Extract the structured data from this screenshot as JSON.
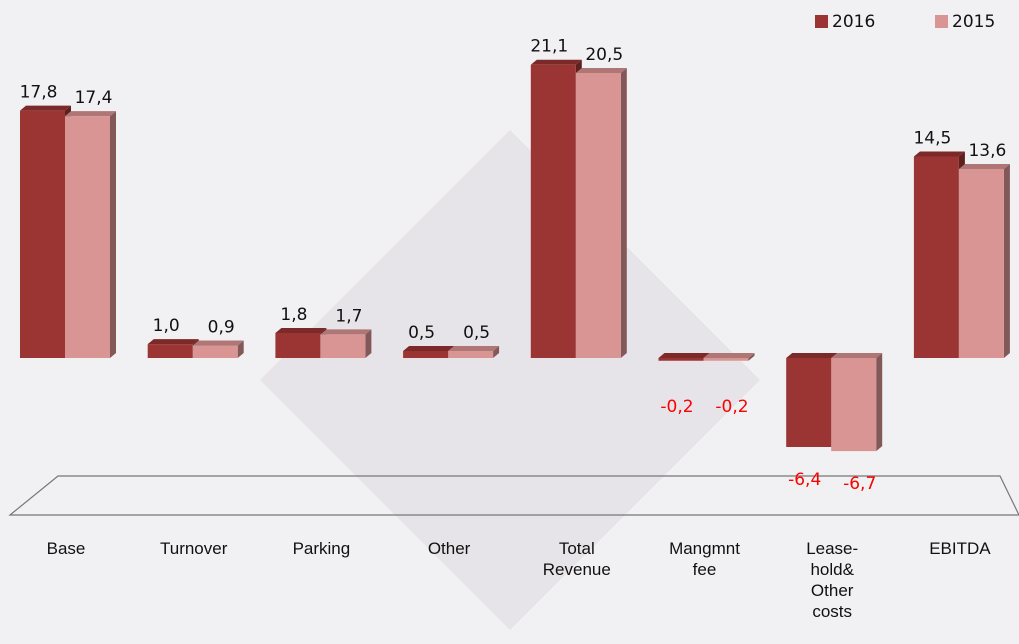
{
  "chart_data": {
    "type": "bar3d",
    "categories": [
      "Base",
      "Turnover",
      "Parking",
      "Other",
      "Total\nRevenue",
      "Mangmnt\nfee",
      "Lease-\nhold&\nOther\ncosts",
      "EBITDA"
    ],
    "series": [
      {
        "name": "2016",
        "color": "#9b3533",
        "values": [
          17.8,
          1.0,
          1.8,
          0.5,
          21.1,
          -0.2,
          -6.4,
          14.5
        ],
        "value_labels": [
          "17,8",
          "1,0",
          "1,8",
          "0,5",
          "21,1",
          "-0,2",
          "-6,4",
          "14,5"
        ]
      },
      {
        "name": "2015",
        "color": "#d99593",
        "values": [
          17.4,
          0.9,
          1.7,
          0.5,
          20.5,
          -0.2,
          -6.7,
          13.6
        ],
        "value_labels": [
          "17,4",
          "0,9",
          "1,7",
          "0,5",
          "20,5",
          "-0,2",
          "-6,7",
          "13,6"
        ]
      }
    ],
    "negative_label_color": "#ff0000",
    "legend": "top-right"
  }
}
